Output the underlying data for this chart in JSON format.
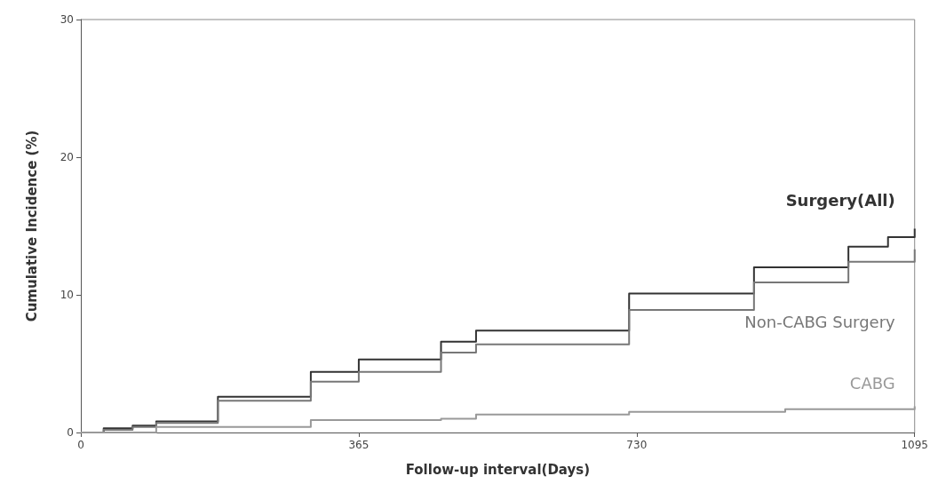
{
  "chart_data": {
    "type": "step",
    "xlabel": "Follow-up interval(Days)",
    "ylabel": "Cumulative Incidence (%)",
    "xlim": [
      0,
      1095
    ],
    "xticks": [
      0,
      365,
      730,
      1095
    ],
    "ylim": [
      0,
      30
    ],
    "yticks": [
      0,
      10,
      20,
      30
    ],
    "grid": false,
    "legend": false,
    "series": [
      {
        "name": "Surgery(All)",
        "color": "#333333",
        "x": [
          0,
          30,
          68,
          99,
          180,
          302,
          365,
          473,
          519,
          720,
          884,
          1008,
          1060,
          1095
        ],
        "values": [
          0,
          0.3,
          0.5,
          0.8,
          2.6,
          4.4,
          5.3,
          6.6,
          7.4,
          10.1,
          12.0,
          13.5,
          14.2,
          14.8
        ]
      },
      {
        "name": "Non-CABG Surgery",
        "color": "#777777",
        "x": [
          0,
          30,
          68,
          99,
          180,
          302,
          365,
          473,
          519,
          720,
          884,
          1008,
          1095
        ],
        "values": [
          0,
          0.2,
          0.4,
          0.7,
          2.3,
          3.7,
          4.4,
          5.8,
          6.4,
          8.9,
          10.9,
          12.4,
          13.3
        ]
      },
      {
        "name": "CABG",
        "color": "#999999",
        "x": [
          0,
          99,
          302,
          473,
          519,
          720,
          925,
          1095
        ],
        "values": [
          0,
          0.4,
          0.9,
          1.0,
          1.3,
          1.5,
          1.7,
          1.9
        ]
      }
    ]
  }
}
